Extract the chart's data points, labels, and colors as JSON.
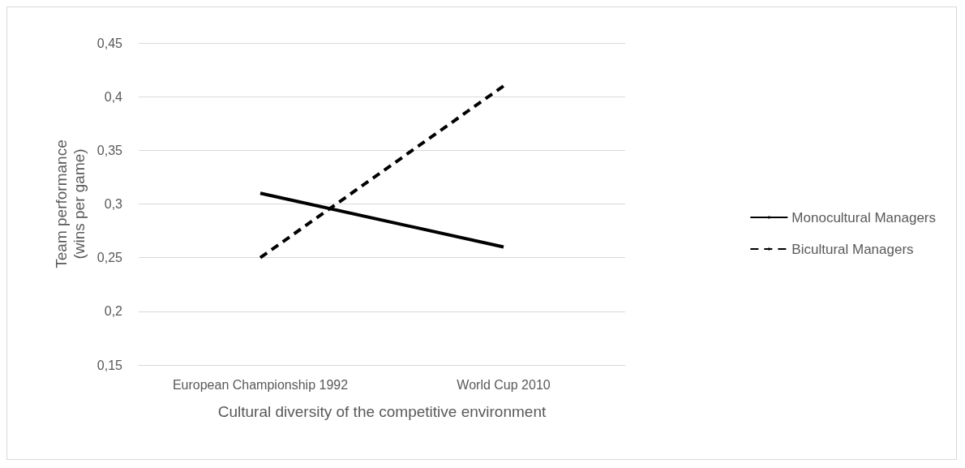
{
  "chart_data": {
    "type": "line",
    "xlabel": "Cultural diversity of the competitive environment",
    "ylabel": "Team performance\n(wins per game)",
    "categories": [
      "European Championship 1992",
      "World Cup 2010"
    ],
    "series": [
      {
        "name": "Monocultural Managers",
        "color": "#000000",
        "values": [
          0.31,
          0.26
        ],
        "line_style": "solid"
      },
      {
        "name": "Bicultural Managers",
        "color": "#000000",
        "values": [
          0.25,
          0.41
        ],
        "line_style": "dashed"
      }
    ],
    "ylim": [
      0.15,
      0.45
    ],
    "yticks": [
      {
        "value": 0.15,
        "label": "0,15"
      },
      {
        "value": 0.2,
        "label": "0,2"
      },
      {
        "value": 0.25,
        "label": "0,25"
      },
      {
        "value": 0.3,
        "label": "0,3"
      },
      {
        "value": 0.35,
        "label": "0,35"
      },
      {
        "value": 0.4,
        "label": "0,4"
      },
      {
        "value": 0.45,
        "label": "0,45"
      }
    ],
    "grid": "y",
    "legend": "right",
    "marker": "none"
  }
}
